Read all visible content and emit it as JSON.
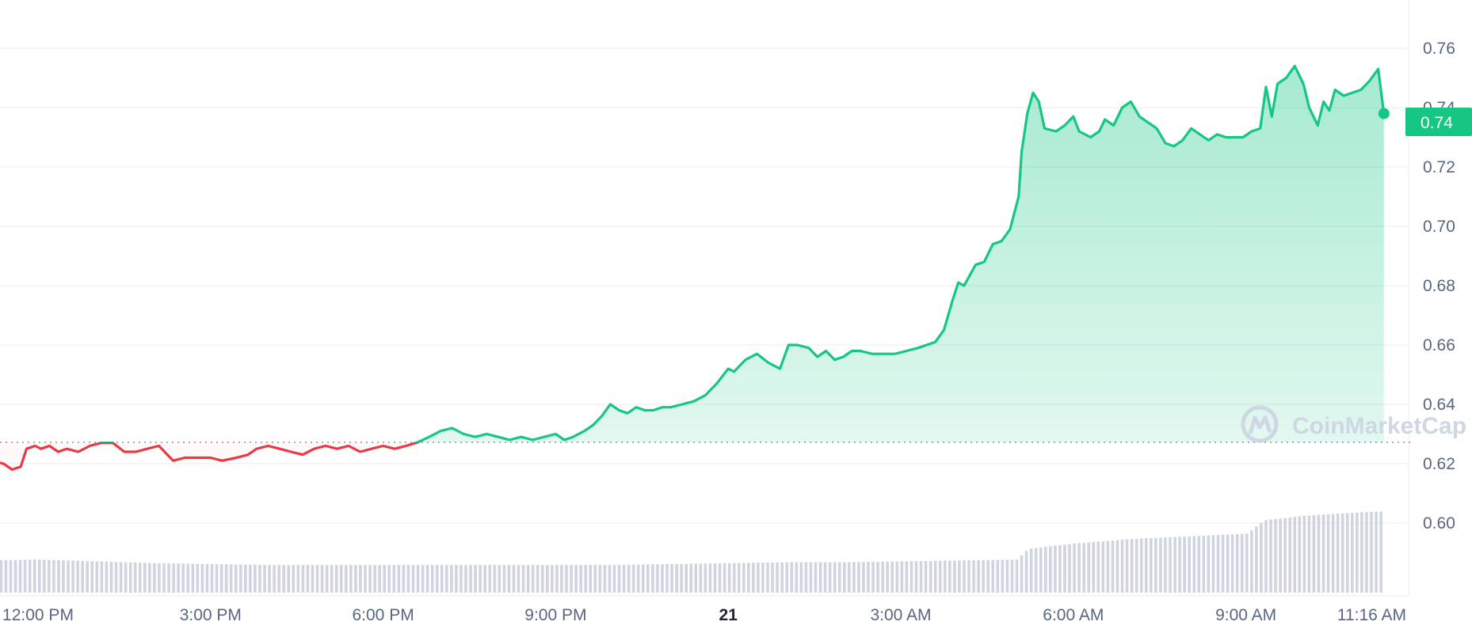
{
  "chart_data": {
    "type": "area",
    "watermark": "CoinMarketCap",
    "baseline": 0.6272,
    "current_price_label": "0.74",
    "y_ticks": [
      "0.60",
      "0.62",
      "0.64",
      "0.66",
      "0.68",
      "0.70",
      "0.72",
      "0.74",
      "0.76"
    ],
    "y_range": [
      0.578,
      0.778
    ],
    "x_range_hours": [
      -1,
      23.4
    ],
    "x_ticks": [
      {
        "label": "12:00 PM",
        "h": 0,
        "bold": false
      },
      {
        "label": "3:00 PM",
        "h": 3,
        "bold": false
      },
      {
        "label": "6:00 PM",
        "h": 6,
        "bold": false
      },
      {
        "label": "9:00 PM",
        "h": 9,
        "bold": false
      },
      {
        "label": "21",
        "h": 12,
        "bold": true
      },
      {
        "label": "3:00 AM",
        "h": 15,
        "bold": false
      },
      {
        "label": "6:00 AM",
        "h": 18,
        "bold": false
      },
      {
        "label": "9:00 AM",
        "h": 21,
        "bold": false
      },
      {
        "label": "11:16 AM",
        "h": 23.27,
        "bold": false
      }
    ],
    "series": [
      {
        "points": [
          [
            -1.0,
            0.6272
          ],
          [
            -0.9,
            0.625
          ],
          [
            -0.8,
            0.621
          ],
          [
            -0.6,
            0.62
          ],
          [
            -0.45,
            0.618
          ],
          [
            -0.3,
            0.619
          ],
          [
            -0.2,
            0.625
          ],
          [
            -0.05,
            0.626
          ],
          [
            0.05,
            0.625
          ],
          [
            0.2,
            0.626
          ],
          [
            0.35,
            0.624
          ],
          [
            0.5,
            0.625
          ],
          [
            0.7,
            0.624
          ],
          [
            0.9,
            0.626
          ],
          [
            1.1,
            0.627
          ],
          [
            1.3,
            0.627
          ],
          [
            1.5,
            0.624
          ],
          [
            1.7,
            0.624
          ],
          [
            1.9,
            0.625
          ],
          [
            2.1,
            0.626
          ],
          [
            2.35,
            0.621
          ],
          [
            2.55,
            0.622
          ],
          [
            2.75,
            0.622
          ],
          [
            3.0,
            0.622
          ],
          [
            3.2,
            0.621
          ],
          [
            3.45,
            0.622
          ],
          [
            3.65,
            0.623
          ],
          [
            3.8,
            0.625
          ],
          [
            4.0,
            0.626
          ],
          [
            4.2,
            0.625
          ],
          [
            4.4,
            0.624
          ],
          [
            4.6,
            0.623
          ],
          [
            4.8,
            0.625
          ],
          [
            5.0,
            0.626
          ],
          [
            5.2,
            0.625
          ],
          [
            5.4,
            0.626
          ],
          [
            5.6,
            0.624
          ],
          [
            5.8,
            0.625
          ],
          [
            6.0,
            0.626
          ],
          [
            6.2,
            0.625
          ],
          [
            6.4,
            0.626
          ],
          [
            6.6,
            0.6272
          ],
          [
            6.8,
            0.629
          ],
          [
            7.0,
            0.631
          ],
          [
            7.2,
            0.632
          ],
          [
            7.4,
            0.63
          ],
          [
            7.6,
            0.629
          ],
          [
            7.8,
            0.63
          ],
          [
            8.0,
            0.629
          ],
          [
            8.2,
            0.628
          ],
          [
            8.4,
            0.629
          ],
          [
            8.6,
            0.628
          ],
          [
            8.8,
            0.629
          ],
          [
            9.0,
            0.63
          ],
          [
            9.15,
            0.628
          ],
          [
            9.3,
            0.629
          ],
          [
            9.5,
            0.631
          ],
          [
            9.65,
            0.633
          ],
          [
            9.8,
            0.636
          ],
          [
            9.95,
            0.64
          ],
          [
            10.1,
            0.638
          ],
          [
            10.25,
            0.637
          ],
          [
            10.4,
            0.639
          ],
          [
            10.55,
            0.638
          ],
          [
            10.7,
            0.638
          ],
          [
            10.85,
            0.639
          ],
          [
            11.0,
            0.639
          ],
          [
            11.2,
            0.64
          ],
          [
            11.4,
            0.641
          ],
          [
            11.6,
            0.643
          ],
          [
            11.8,
            0.647
          ],
          [
            12.0,
            0.652
          ],
          [
            12.1,
            0.651
          ],
          [
            12.3,
            0.655
          ],
          [
            12.5,
            0.657
          ],
          [
            12.7,
            0.654
          ],
          [
            12.9,
            0.652
          ],
          [
            13.05,
            0.66
          ],
          [
            13.2,
            0.66
          ],
          [
            13.4,
            0.659
          ],
          [
            13.55,
            0.656
          ],
          [
            13.7,
            0.658
          ],
          [
            13.85,
            0.655
          ],
          [
            14.0,
            0.656
          ],
          [
            14.15,
            0.658
          ],
          [
            14.3,
            0.658
          ],
          [
            14.5,
            0.657
          ],
          [
            14.7,
            0.657
          ],
          [
            14.9,
            0.657
          ],
          [
            15.1,
            0.658
          ],
          [
            15.3,
            0.659
          ],
          [
            15.45,
            0.66
          ],
          [
            15.6,
            0.661
          ],
          [
            15.75,
            0.665
          ],
          [
            15.9,
            0.675
          ],
          [
            16.0,
            0.681
          ],
          [
            16.1,
            0.68
          ],
          [
            16.3,
            0.687
          ],
          [
            16.45,
            0.688
          ],
          [
            16.6,
            0.694
          ],
          [
            16.75,
            0.695
          ],
          [
            16.9,
            0.699
          ],
          [
            17.05,
            0.71
          ],
          [
            17.1,
            0.725
          ],
          [
            17.2,
            0.738
          ],
          [
            17.3,
            0.745
          ],
          [
            17.4,
            0.742
          ],
          [
            17.5,
            0.733
          ],
          [
            17.7,
            0.732
          ],
          [
            17.85,
            0.734
          ],
          [
            18.0,
            0.737
          ],
          [
            18.1,
            0.732
          ],
          [
            18.3,
            0.73
          ],
          [
            18.45,
            0.732
          ],
          [
            18.55,
            0.736
          ],
          [
            18.7,
            0.734
          ],
          [
            18.85,
            0.74
          ],
          [
            19.0,
            0.742
          ],
          [
            19.15,
            0.737
          ],
          [
            19.3,
            0.735
          ],
          [
            19.45,
            0.733
          ],
          [
            19.6,
            0.728
          ],
          [
            19.75,
            0.727
          ],
          [
            19.9,
            0.729
          ],
          [
            20.05,
            0.733
          ],
          [
            20.2,
            0.731
          ],
          [
            20.35,
            0.729
          ],
          [
            20.5,
            0.731
          ],
          [
            20.65,
            0.73
          ],
          [
            20.8,
            0.73
          ],
          [
            20.95,
            0.73
          ],
          [
            21.1,
            0.732
          ],
          [
            21.25,
            0.733
          ],
          [
            21.35,
            0.747
          ],
          [
            21.45,
            0.737
          ],
          [
            21.55,
            0.748
          ],
          [
            21.7,
            0.75
          ],
          [
            21.85,
            0.754
          ],
          [
            22.0,
            0.748
          ],
          [
            22.1,
            0.74
          ],
          [
            22.25,
            0.734
          ],
          [
            22.35,
            0.742
          ],
          [
            22.45,
            0.739
          ],
          [
            22.55,
            0.746
          ],
          [
            22.7,
            0.744
          ],
          [
            22.85,
            0.745
          ],
          [
            23.0,
            0.746
          ],
          [
            23.15,
            0.749
          ],
          [
            23.3,
            0.753
          ],
          [
            23.4,
            0.738
          ]
        ]
      }
    ],
    "volume": [
      {
        "h": -1.0,
        "v": 0.36
      },
      {
        "h": 0.0,
        "v": 0.37
      },
      {
        "h": 1.0,
        "v": 0.35
      },
      {
        "h": 2.0,
        "v": 0.33
      },
      {
        "h": 3.0,
        "v": 0.32
      },
      {
        "h": 4.0,
        "v": 0.31
      },
      {
        "h": 5.0,
        "v": 0.31
      },
      {
        "h": 6.0,
        "v": 0.31
      },
      {
        "h": 7.0,
        "v": 0.31
      },
      {
        "h": 8.0,
        "v": 0.31
      },
      {
        "h": 9.0,
        "v": 0.31
      },
      {
        "h": 10.0,
        "v": 0.31
      },
      {
        "h": 11.0,
        "v": 0.32
      },
      {
        "h": 12.0,
        "v": 0.33
      },
      {
        "h": 13.0,
        "v": 0.34
      },
      {
        "h": 14.0,
        "v": 0.34
      },
      {
        "h": 15.0,
        "v": 0.35
      },
      {
        "h": 16.0,
        "v": 0.36
      },
      {
        "h": 17.0,
        "v": 0.37
      },
      {
        "h": 17.2,
        "v": 0.49
      },
      {
        "h": 18.0,
        "v": 0.55
      },
      {
        "h": 19.0,
        "v": 0.6
      },
      {
        "h": 20.0,
        "v": 0.63
      },
      {
        "h": 21.0,
        "v": 0.66
      },
      {
        "h": 21.3,
        "v": 0.81
      },
      {
        "h": 22.0,
        "v": 0.86
      },
      {
        "h": 23.0,
        "v": 0.9
      },
      {
        "h": 23.4,
        "v": 0.91
      }
    ],
    "colors": {
      "up": "#16c784",
      "down": "#ea3943",
      "volume": "#cfd4e0",
      "grid": "#eff2f5",
      "axis_text": "#58667e",
      "watermark": "#cfd6e4"
    }
  }
}
